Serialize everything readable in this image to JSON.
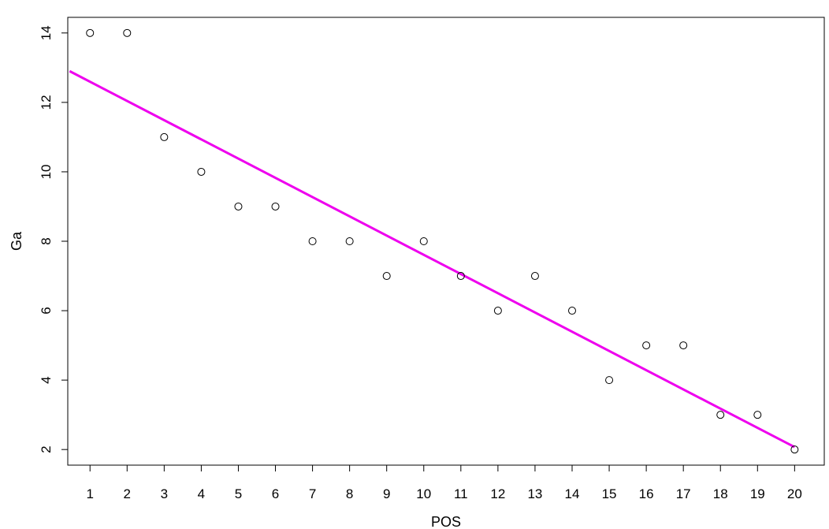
{
  "chart_data": {
    "type": "scatter",
    "title": "",
    "xlabel": "POS",
    "ylabel": "Ga",
    "xlim": [
      0.4,
      20.8
    ],
    "ylim": [
      1.55,
      14.45
    ],
    "x_ticks": [
      1,
      2,
      3,
      4,
      5,
      6,
      7,
      8,
      9,
      10,
      11,
      12,
      13,
      14,
      15,
      16,
      17,
      18,
      19,
      20
    ],
    "x_tick_labels": [
      "1",
      "2",
      "3",
      "4",
      "5",
      "6",
      "7",
      "8",
      "9",
      "10",
      "11",
      "12",
      "13",
      "14",
      "15",
      "16",
      "17",
      "18",
      "19",
      "20"
    ],
    "y_ticks": [
      2,
      4,
      6,
      8,
      10,
      12,
      14
    ],
    "y_tick_labels": [
      "2",
      "4",
      "6",
      "8",
      "10",
      "12",
      "14"
    ],
    "points": {
      "x": [
        1,
        2,
        3,
        4,
        5,
        6,
        7,
        8,
        9,
        10,
        11,
        12,
        13,
        14,
        15,
        16,
        17,
        18,
        19,
        20
      ],
      "y": [
        14,
        14,
        11,
        10,
        9,
        9,
        8,
        8,
        7,
        8,
        7,
        6,
        7,
        6,
        4,
        5,
        5,
        3,
        3,
        2
      ]
    },
    "fit_line": {
      "x": [
        0.45,
        20.0
      ],
      "y": [
        12.9,
        2.07
      ],
      "color": "#ee00ee"
    },
    "marker_style": "open-circle",
    "grid": false,
    "legend": "none"
  }
}
